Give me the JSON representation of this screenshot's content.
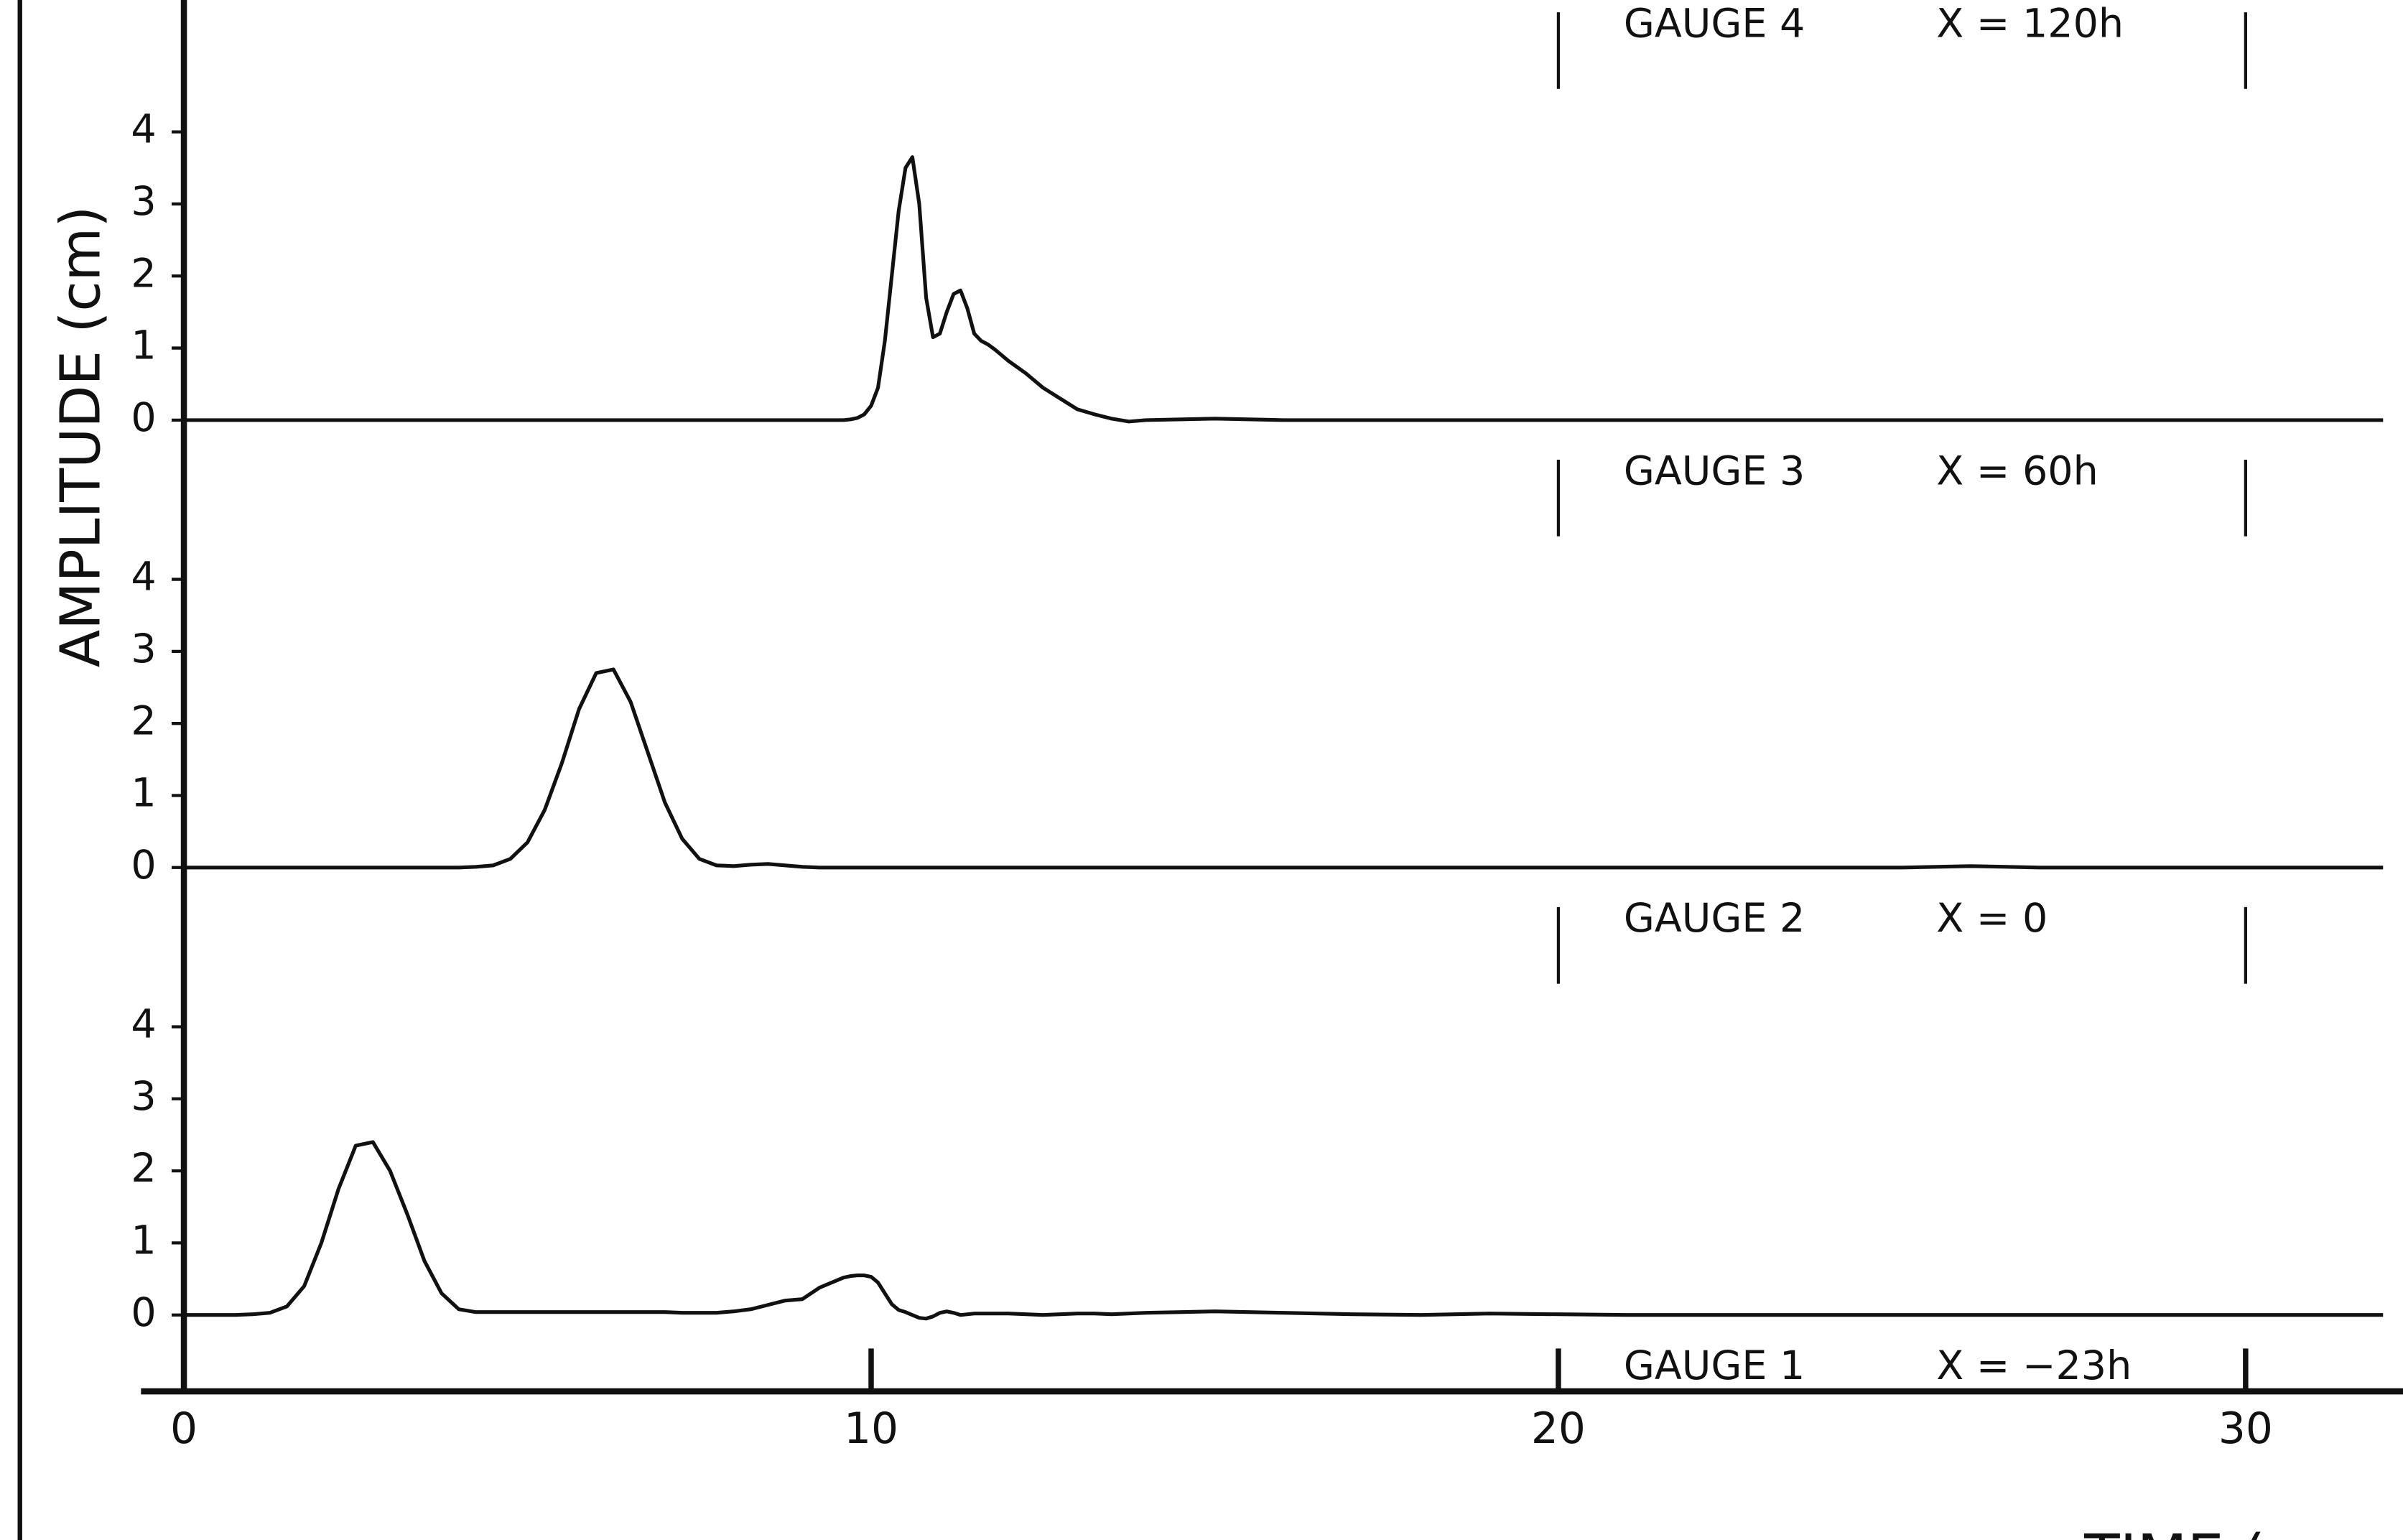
{
  "chart_data": {
    "type": "line",
    "ylabel": "AMPLITUDE (cm)",
    "xlabel": "TIME (",
    "xlim": [
      0,
      32.29
    ],
    "xticks": [
      0,
      10,
      20,
      30
    ],
    "ylim": [
      -1.06,
      5.15
    ],
    "yticks": [
      0,
      1,
      2,
      3,
      4
    ],
    "x": [
      0,
      0.25,
      0.5,
      0.75,
      1,
      1.25,
      1.5,
      1.75,
      2,
      2.25,
      2.5,
      2.75,
      3,
      3.25,
      3.5,
      3.75,
      4,
      4.25,
      4.5,
      4.75,
      5,
      5.25,
      5.5,
      5.75,
      6,
      6.25,
      6.5,
      6.75,
      7,
      7.25,
      7.5,
      7.75,
      8,
      8.25,
      8.5,
      8.75,
      9,
      9.25,
      9.5,
      9.6,
      9.7,
      9.8,
      9.9,
      10,
      10.1,
      10.2,
      10.3,
      10.4,
      10.5,
      10.6,
      10.7,
      10.8,
      10.9,
      11,
      11.1,
      11.2,
      11.3,
      11.4,
      11.5,
      11.6,
      11.7,
      11.8,
      11.9,
      12,
      12.25,
      12.5,
      12.75,
      13,
      13.25,
      13.5,
      13.75,
      14,
      15,
      16,
      17,
      18,
      19,
      20,
      21,
      22,
      23,
      24,
      25,
      26,
      27,
      28,
      29,
      30,
      31,
      32
    ],
    "series": [
      {
        "name": "GAUGE 1",
        "location": "X = −23h",
        "color": "#111111",
        "values": [
          0,
          0,
          0,
          0,
          0.01,
          0.03,
          0.12,
          0.4,
          1.0,
          1.75,
          2.35,
          2.4,
          2.0,
          1.4,
          0.75,
          0.3,
          0.08,
          0.04,
          0.04,
          0.04,
          0.04,
          0.04,
          0.04,
          0.04,
          0.04,
          0.04,
          0.04,
          0.04,
          0.04,
          0.03,
          0.03,
          0.03,
          0.05,
          0.08,
          0.14,
          0.2,
          0.22,
          0.38,
          0.48,
          0.52,
          0.54,
          0.55,
          0.55,
          0.53,
          0.45,
          0.3,
          0.15,
          0.07,
          0.04,
          0.0,
          -0.04,
          -0.05,
          -0.02,
          0.03,
          0.05,
          0.03,
          0.0,
          0.01,
          0.02,
          0.02,
          0.02,
          0.02,
          0.02,
          0.02,
          0.01,
          0.0,
          0.01,
          0.02,
          0.02,
          0.01,
          0.02,
          0.03,
          0.05,
          0.03,
          0.01,
          0.0,
          0.02,
          0.01,
          0,
          0,
          0,
          0,
          0,
          0,
          0,
          0,
          0,
          0,
          0,
          0
        ]
      },
      {
        "name": "GAUGE 2",
        "location": "X = 0",
        "color": "#111111",
        "values": [
          0,
          0,
          0,
          0,
          0,
          0,
          0,
          0,
          0,
          0,
          0,
          0,
          0,
          0,
          0,
          0,
          0,
          0.01,
          0.03,
          0.12,
          0.35,
          0.8,
          1.45,
          2.2,
          2.7,
          2.75,
          2.3,
          1.6,
          0.9,
          0.4,
          0.12,
          0.03,
          0.02,
          0.04,
          0.05,
          0.03,
          0.01,
          0.0,
          0,
          0,
          0,
          0,
          0,
          0,
          0,
          0,
          0,
          0,
          0,
          0,
          0,
          0,
          0,
          0,
          0,
          0,
          0,
          0,
          0,
          0,
          0,
          0,
          0,
          0,
          0,
          0,
          0,
          0,
          0,
          0,
          0,
          0,
          0,
          0,
          0,
          0,
          0,
          0,
          0,
          0,
          0,
          0,
          0,
          0.02,
          0,
          0,
          0,
          0,
          0,
          0
        ]
      },
      {
        "name": "GAUGE 3",
        "location": "X = 60h",
        "color": "#111111",
        "values": [
          0,
          0,
          0,
          0,
          0,
          0,
          0,
          0,
          0,
          0,
          0,
          0,
          0,
          0,
          0,
          0,
          0,
          0,
          0,
          0,
          0,
          0,
          0,
          0,
          0,
          0,
          0,
          0,
          0,
          0,
          0,
          0,
          0,
          0,
          0,
          0,
          0,
          0,
          0,
          0,
          0.01,
          0.03,
          0.08,
          0.2,
          0.45,
          1.1,
          2.0,
          2.9,
          3.5,
          3.65,
          3.0,
          1.7,
          1.15,
          1.2,
          1.5,
          1.75,
          1.8,
          1.55,
          1.2,
          1.1,
          1.05,
          0.98,
          0.9,
          0.82,
          0.65,
          0.45,
          0.3,
          0.15,
          0.08,
          0.02,
          -0.02,
          0.0,
          0.02,
          0,
          0,
          0,
          0,
          0,
          0,
          0,
          0,
          0,
          0,
          0,
          0,
          0,
          0,
          0,
          0,
          0
        ]
      }
    ],
    "annotations": [
      {
        "name": "GAUGE 4",
        "location": "X = 120h"
      }
    ]
  }
}
